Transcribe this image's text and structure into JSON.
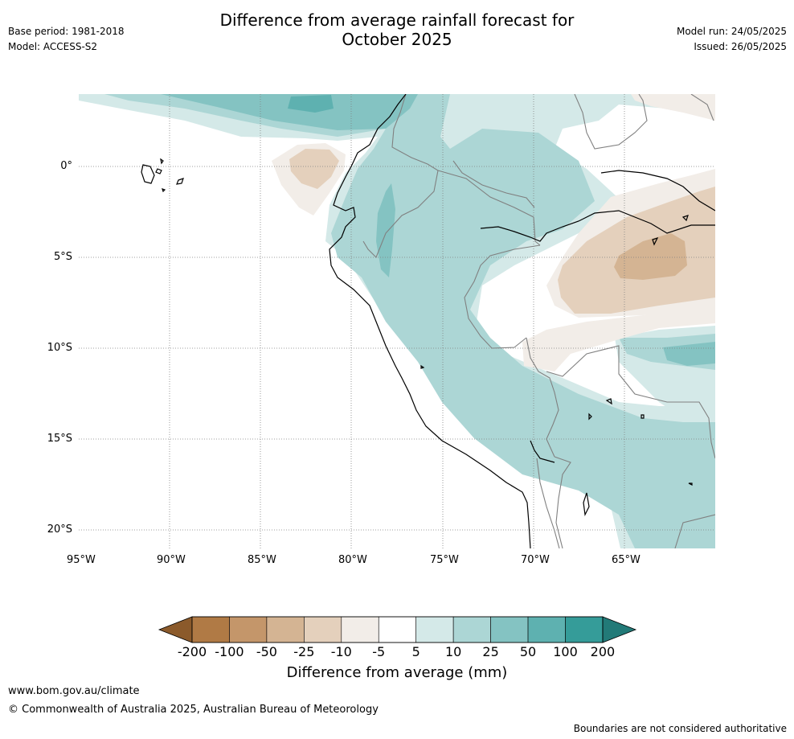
{
  "header": {
    "title_line1": "Difference from average rainfall forecast for",
    "title_line2": "October 2025",
    "base_period": "Base period: 1981-2018",
    "model": "Model: ACCESS-S2",
    "model_run": "Model run: 24/05/2025",
    "issued": "Issued: 26/05/2025"
  },
  "map": {
    "lon_labels": [
      "95°W",
      "90°W",
      "85°W",
      "80°W",
      "75°W",
      "70°W",
      "65°W"
    ],
    "lat_labels": [
      "0°",
      "5°S",
      "10°S",
      "15°S",
      "20°S"
    ],
    "colors": {
      "dry_200": "#8b5a2b",
      "dry_100": "#b07a45",
      "dry_50": "#c4966a",
      "dry_25": "#d4b493",
      "dry_10": "#e4d0bc",
      "dry_5": "#f2ede8",
      "neutral": "#ffffff",
      "wet_5": "#d4e9e8",
      "wet_10": "#acd6d5",
      "wet_25": "#84c3c2",
      "wet_50": "#5eb1b0",
      "wet_100": "#359c99",
      "wet_200": "#227a78",
      "coastline": "#000000",
      "border": "#808080",
      "grid": "#808080"
    }
  },
  "colorbar": {
    "labels": [
      "-200",
      "-100",
      "-50",
      "-25",
      "-10",
      "-5",
      "5",
      "10",
      "25",
      "50",
      "100",
      "200"
    ],
    "colors": [
      "#8b5a2b",
      "#b07a45",
      "#c4966a",
      "#d4b493",
      "#e4d0bc",
      "#f2ede8",
      "#ffffff",
      "#d4e9e8",
      "#acd6d5",
      "#84c3c2",
      "#5eb1b0",
      "#359c99",
      "#227a78"
    ],
    "title": "Difference from average (mm)"
  },
  "footer": {
    "url": "www.bom.gov.au/climate",
    "copyright": "© Commonwealth of Australia 2025, Australian Bureau of Meteorology",
    "note": "Boundaries are not considered authoritative"
  }
}
